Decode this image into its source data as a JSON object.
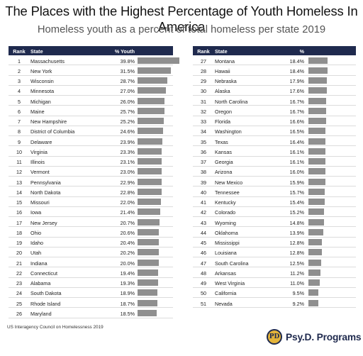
{
  "title": "The Places with the Highest Percentage of Youth Homeless In America",
  "subtitle": "Homeless youth as a percent of total homeless per state 2019",
  "headers": {
    "rank": "Rank",
    "state": "State",
    "pct": "% Youth"
  },
  "footer": "US Interagency Council on Homelessness 2019",
  "logo": {
    "mark": "PD",
    "text": "Psy.D. Programs"
  },
  "colors": {
    "header_bg": "#1f2a4e",
    "bar": "#8f8f8f",
    "logo_gold": "#e4b43a"
  },
  "chart_data": {
    "type": "table",
    "columns": [
      "Rank",
      "State",
      "% Youth"
    ],
    "bar_max": 40,
    "rows": [
      {
        "rank": "1",
        "state": "Massachusetts",
        "pct": "39.8%",
        "value": 39.8
      },
      {
        "rank": "2",
        "state": "New York",
        "pct": "31.5%",
        "value": 31.5
      },
      {
        "rank": "3",
        "state": "Wisconsin",
        "pct": "28.7%",
        "value": 28.7
      },
      {
        "rank": "4",
        "state": "Minnesota",
        "pct": "27.0%",
        "value": 27.0
      },
      {
        "rank": "5",
        "state": "Michigan",
        "pct": "26.0%",
        "value": 26.0
      },
      {
        "rank": "6",
        "state": "Maine",
        "pct": "25.7%",
        "value": 25.7
      },
      {
        "rank": "7",
        "state": "New Hampshire",
        "pct": "25.2%",
        "value": 25.2
      },
      {
        "rank": "8",
        "state": "District of Columbia",
        "pct": "24.6%",
        "value": 24.6
      },
      {
        "rank": "9",
        "state": "Delaware",
        "pct": "23.9%",
        "value": 23.9
      },
      {
        "rank": "10",
        "state": "Virginia",
        "pct": "23.3%",
        "value": 23.3
      },
      {
        "rank": "11",
        "state": "Illinois",
        "pct": "23.1%",
        "value": 23.1
      },
      {
        "rank": "12",
        "state": "Vermont",
        "pct": "23.0%",
        "value": 23.0
      },
      {
        "rank": "13",
        "state": "Pennsylvania",
        "pct": "22.9%",
        "value": 22.9
      },
      {
        "rank": "14",
        "state": "North Dakota",
        "pct": "22.8%",
        "value": 22.8
      },
      {
        "rank": "15",
        "state": "Missouri",
        "pct": "22.0%",
        "value": 22.0
      },
      {
        "rank": "16",
        "state": "Iowa",
        "pct": "21.4%",
        "value": 21.4
      },
      {
        "rank": "17",
        "state": "New Jersey",
        "pct": "20.7%",
        "value": 20.7
      },
      {
        "rank": "18",
        "state": "Ohio",
        "pct": "20.6%",
        "value": 20.6
      },
      {
        "rank": "19",
        "state": "Idaho",
        "pct": "20.4%",
        "value": 20.4
      },
      {
        "rank": "20",
        "state": "Utah",
        "pct": "20.2%",
        "value": 20.2
      },
      {
        "rank": "21",
        "state": "Indiana",
        "pct": "20.0%",
        "value": 20.0
      },
      {
        "rank": "22",
        "state": "Connecticut",
        "pct": "19.4%",
        "value": 19.4
      },
      {
        "rank": "23",
        "state": "Alabama",
        "pct": "19.3%",
        "value": 19.3
      },
      {
        "rank": "24",
        "state": "South Dakota",
        "pct": "18.9%",
        "value": 18.9
      },
      {
        "rank": "25",
        "state": "Rhode Island",
        "pct": "18.7%",
        "value": 18.7
      },
      {
        "rank": "26",
        "state": "Maryland",
        "pct": "18.5%",
        "value": 18.5
      },
      {
        "rank": "27",
        "state": "Montana",
        "pct": "18.4%",
        "value": 18.4
      },
      {
        "rank": "28",
        "state": "Hawaii",
        "pct": "18.4%",
        "value": 18.4
      },
      {
        "rank": "29",
        "state": "Nebraska",
        "pct": "17.9%",
        "value": 17.9
      },
      {
        "rank": "30",
        "state": "Alaska",
        "pct": "17.6%",
        "value": 17.6
      },
      {
        "rank": "31",
        "state": "North Carolina",
        "pct": "16.7%",
        "value": 16.7
      },
      {
        "rank": "32",
        "state": "Oregon",
        "pct": "16.7%",
        "value": 16.7
      },
      {
        "rank": "33",
        "state": "Florida",
        "pct": "16.6%",
        "value": 16.6
      },
      {
        "rank": "34",
        "state": "Washington",
        "pct": "16.5%",
        "value": 16.5
      },
      {
        "rank": "35",
        "state": "Texas",
        "pct": "16.4%",
        "value": 16.4
      },
      {
        "rank": "36",
        "state": "Kansas",
        "pct": "16.1%",
        "value": 16.1
      },
      {
        "rank": "37",
        "state": "Georgia",
        "pct": "16.1%",
        "value": 16.1
      },
      {
        "rank": "38",
        "state": "Arizona",
        "pct": "16.0%",
        "value": 16.0
      },
      {
        "rank": "39",
        "state": "New Mexico",
        "pct": "15.9%",
        "value": 15.9
      },
      {
        "rank": "40",
        "state": "Tennessee",
        "pct": "15.7%",
        "value": 15.7
      },
      {
        "rank": "41",
        "state": "Kentucky",
        "pct": "15.4%",
        "value": 15.4
      },
      {
        "rank": "42",
        "state": "Colorado",
        "pct": "15.2%",
        "value": 15.2
      },
      {
        "rank": "43",
        "state": "Wyoming",
        "pct": "14.8%",
        "value": 14.8
      },
      {
        "rank": "44",
        "state": "Oklahoma",
        "pct": "13.9%",
        "value": 13.9
      },
      {
        "rank": "45",
        "state": "Mississippi",
        "pct": "12.8%",
        "value": 12.8
      },
      {
        "rank": "46",
        "state": "Louisiana",
        "pct": "12.8%",
        "value": 12.8
      },
      {
        "rank": "47",
        "state": "South Carolina",
        "pct": "12.5%",
        "value": 12.5
      },
      {
        "rank": "48",
        "state": "Arkansas",
        "pct": "11.2%",
        "value": 11.2
      },
      {
        "rank": "49",
        "state": "West Virginia",
        "pct": "11.0%",
        "value": 11.0
      },
      {
        "rank": "50",
        "state": "California",
        "pct": "9.5%",
        "value": 9.5
      },
      {
        "rank": "51",
        "state": "Nevada",
        "pct": "9.2%",
        "value": 9.2
      }
    ]
  }
}
